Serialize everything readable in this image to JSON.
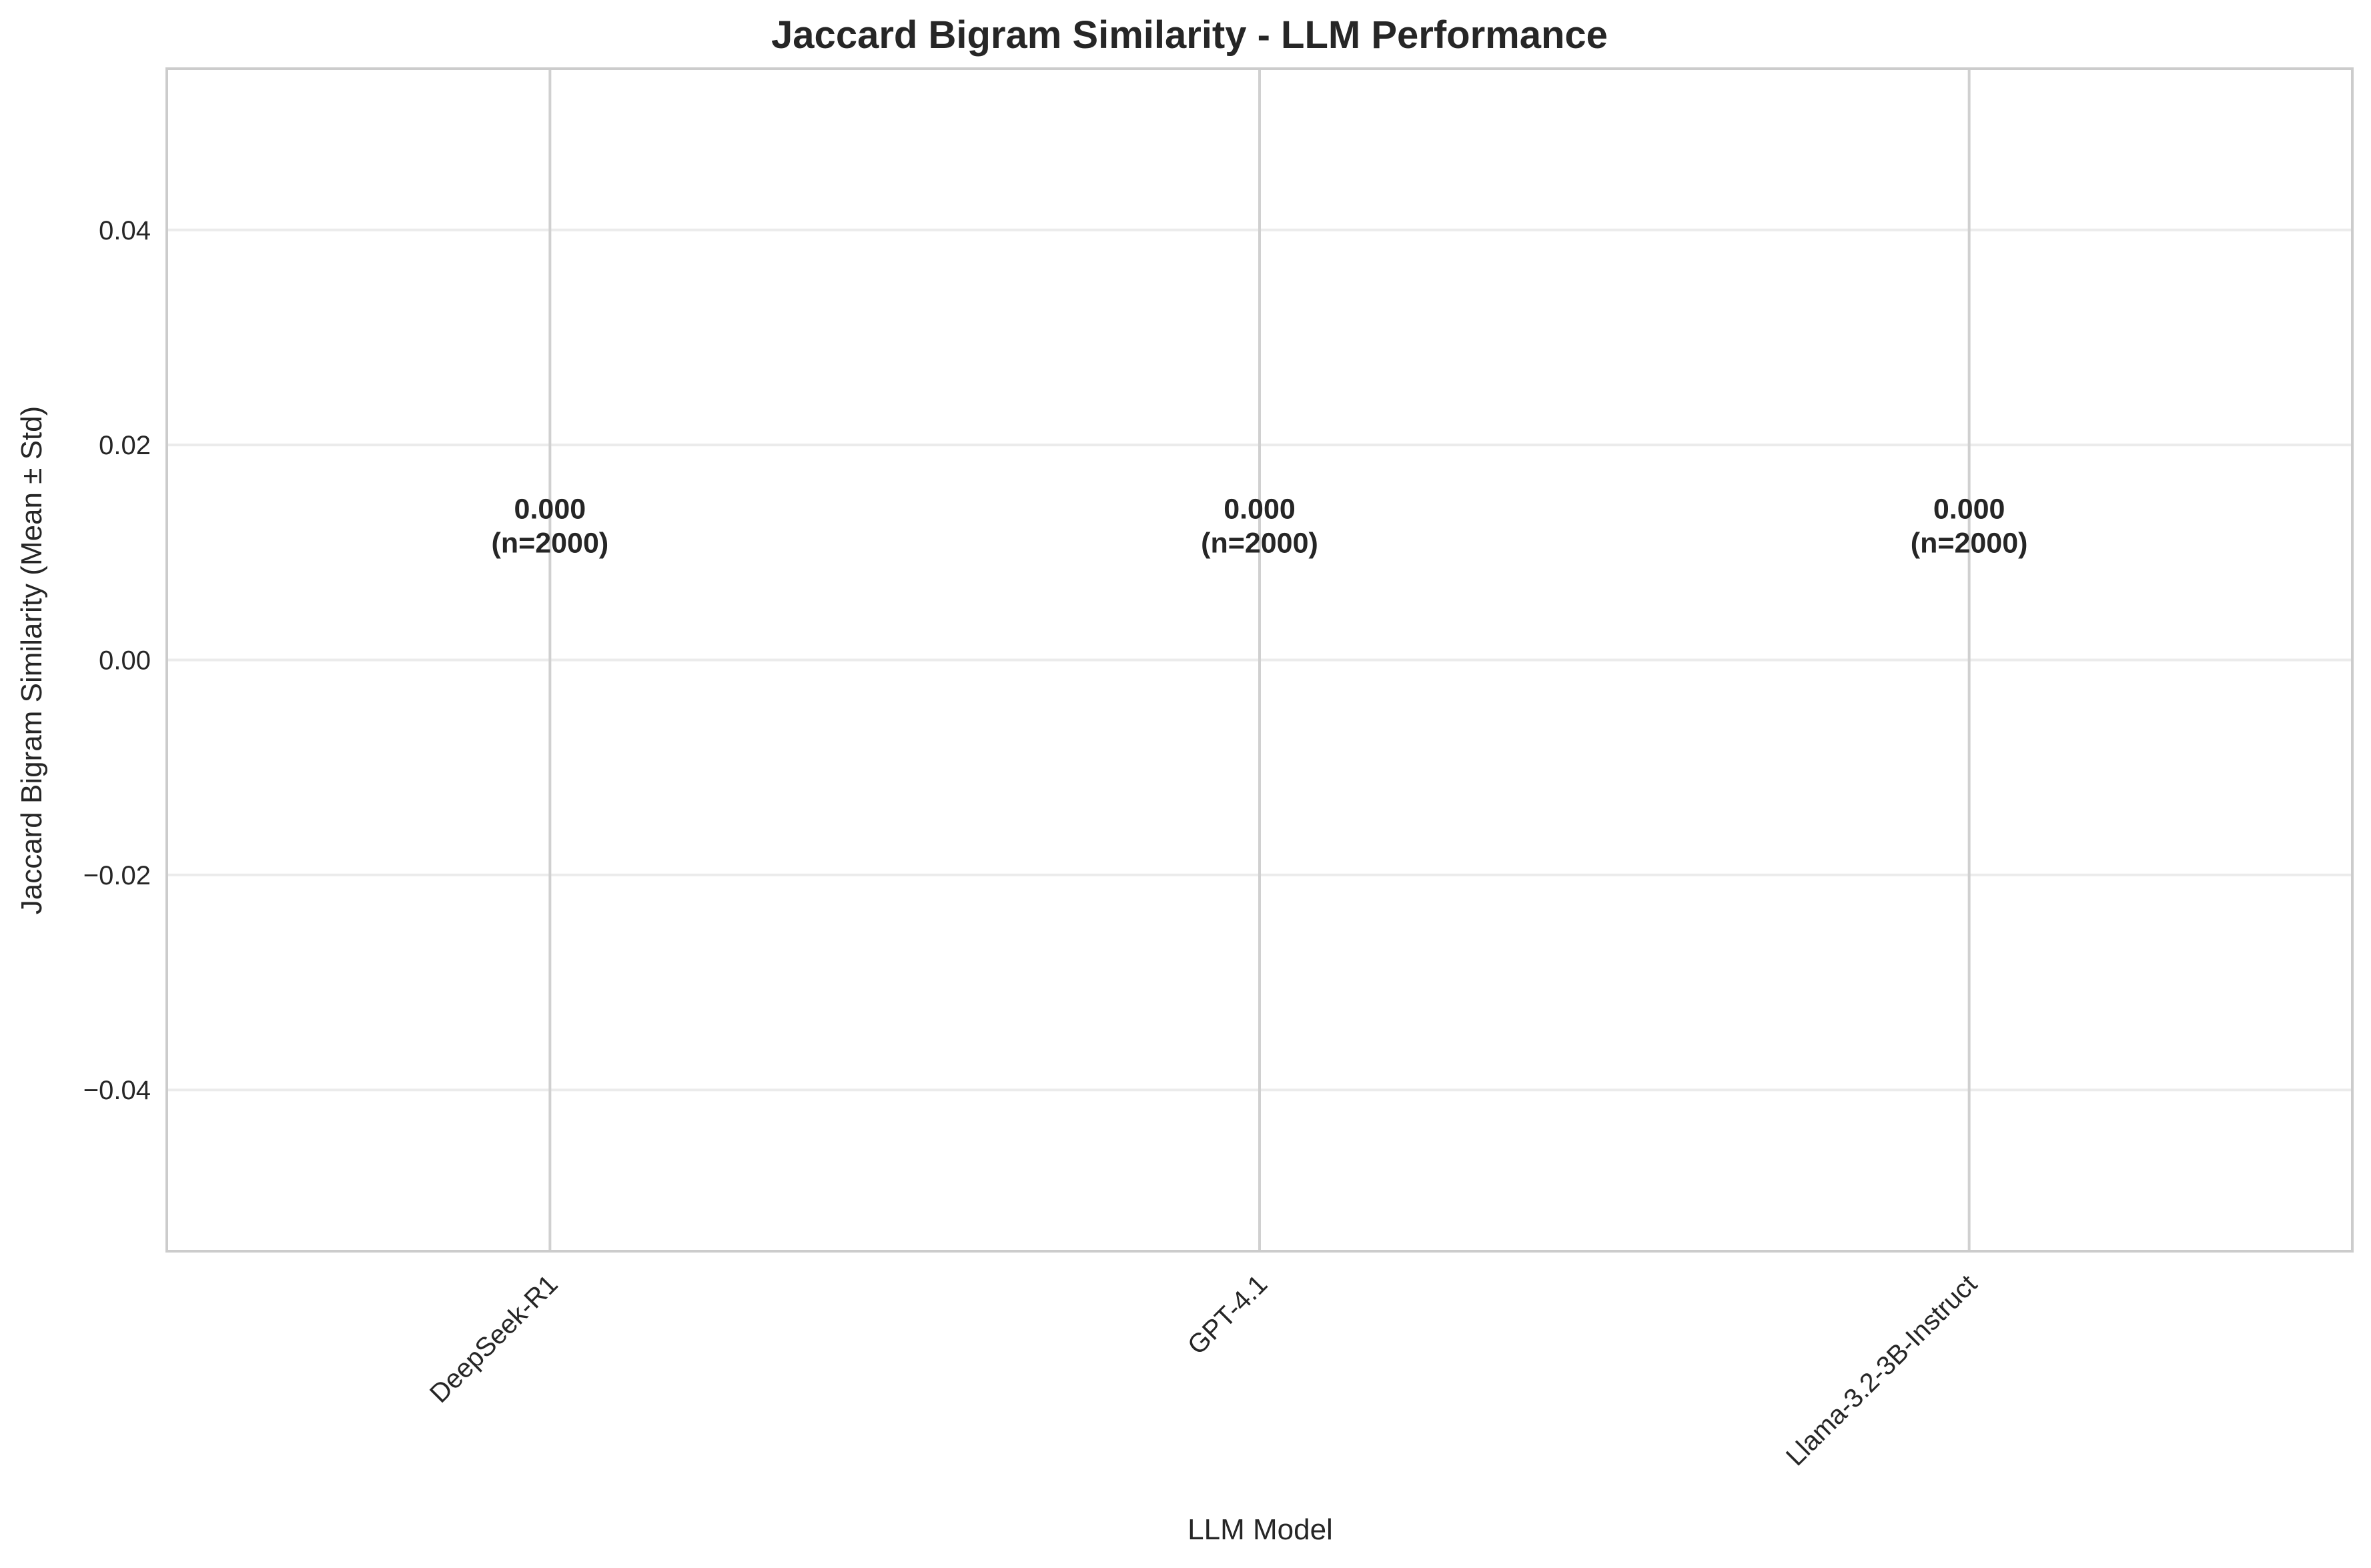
{
  "chart_data": {
    "type": "bar",
    "title": "Jaccard Bigram Similarity - LLM Performance",
    "xlabel": "LLM Model",
    "ylabel": "Jaccard Bigram Similarity (Mean ± Std)",
    "categories": [
      "DeepSeek-R1",
      "GPT-4.1",
      "Llama-3.2-3B-Instruct"
    ],
    "values": [
      0.0,
      0.0,
      0.0
    ],
    "errors": [
      0.0,
      0.0,
      0.0
    ],
    "data_labels": [
      {
        "value": "0.000",
        "n": "(n=2000)"
      },
      {
        "value": "0.000",
        "n": "(n=2000)"
      },
      {
        "value": "0.000",
        "n": "(n=2000)"
      }
    ],
    "ylim": [
      -0.055,
      0.055
    ],
    "yticks": [
      -0.04,
      -0.02,
      0.0,
      0.02,
      0.04
    ],
    "ytick_labels": [
      "−0.04",
      "−0.02",
      "0.00",
      "0.02",
      "0.04"
    ],
    "grid": true,
    "legend": "none",
    "colors": {
      "grid": "#ebebeb",
      "xgrid": "#d0d0d0",
      "frame": "#cccccc",
      "bar_edge": "#000000",
      "text": "#262626"
    }
  }
}
